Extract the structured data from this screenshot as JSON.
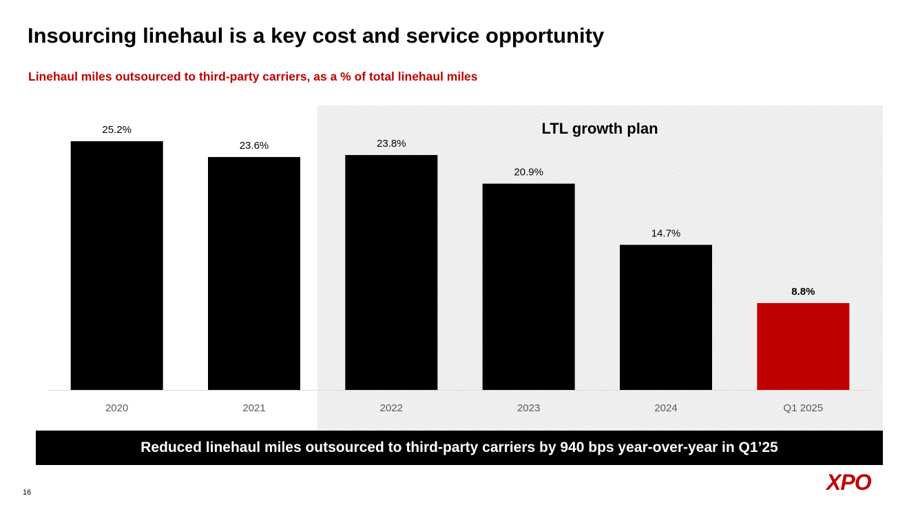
{
  "slide": {
    "title": "Insourcing linehaul is a key cost and service opportunity",
    "subtitle": "Linehaul miles outsourced to third-party carriers, as a % of total linehaul miles",
    "banner": "Reduced linehaul miles outsourced to third-party carriers by 940 bps year-over-year in Q1’25",
    "page_number": "16",
    "logo_text": "XPO"
  },
  "chart_data": {
    "type": "bar",
    "categories": [
      "2020",
      "2021",
      "2022",
      "2023",
      "2024",
      "Q1 2025"
    ],
    "values": [
      25.2,
      23.6,
      23.8,
      20.9,
      14.7,
      8.8
    ],
    "data_labels": [
      "25.2%",
      "23.6%",
      "23.8%",
      "20.9%",
      "14.7%",
      "8.8%"
    ],
    "highlight_index": 5,
    "highlight_region_label": "LTL growth plan",
    "highlight_region_start_category": "2022",
    "ylim": [
      0,
      25.2
    ],
    "title": "",
    "xlabel": "",
    "ylabel": ""
  },
  "colors": {
    "bar": "#000000",
    "highlight_bar": "#c00000",
    "subtitle": "#c00000",
    "region_fill": "#efefef",
    "axis": "#d9d9d9",
    "tick_label": "#595959"
  }
}
